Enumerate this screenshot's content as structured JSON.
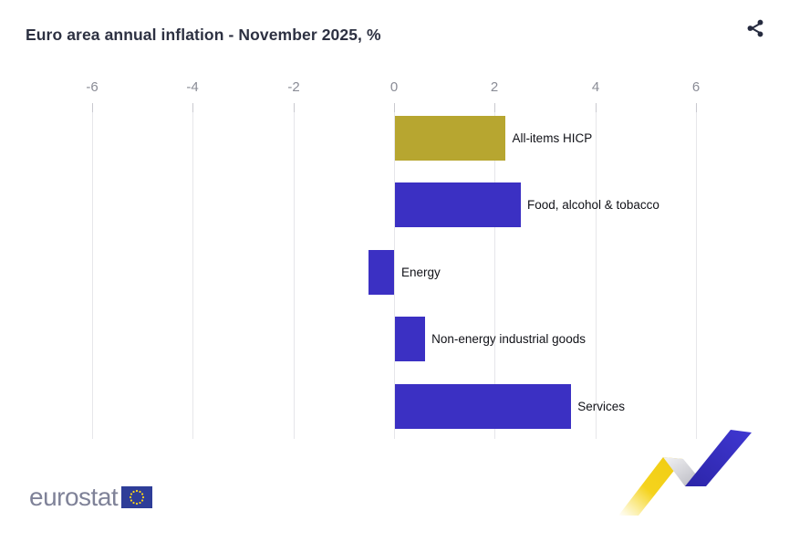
{
  "header": {
    "title": "Euro area annual inflation - November 2025, %"
  },
  "chart_data": {
    "type": "bar",
    "orientation": "horizontal",
    "title": "Euro area annual inflation - November 2025, %",
    "categories": [
      "All-items HICP",
      "Food, alcohol & tobacco",
      "Energy",
      "Non-energy industrial goods",
      "Services"
    ],
    "values": [
      2.2,
      2.5,
      -0.5,
      0.6,
      3.5
    ],
    "unit": "%",
    "bar_colors": [
      "#b7a630",
      "#3b30c3",
      "#3b30c3",
      "#3b30c3",
      "#3b30c3"
    ],
    "x_ticks": [
      -6,
      -4,
      -2,
      0,
      2,
      4,
      6
    ],
    "xlim": [
      -6,
      6
    ],
    "grid": "vertical-gridlines",
    "legend": "none",
    "category_label_position": "end-of-bar"
  },
  "footer": {
    "logo_text": "eurostat"
  },
  "colors": {
    "accent_gold": "#b7a630",
    "accent_blue": "#3b30c3",
    "title_text": "#2d3142",
    "tick_label": "#8a8c96",
    "gridline": "#e6e6ea",
    "logo_gray": "#7f8298",
    "eu_flag_blue": "#2e3d98",
    "eu_star_yellow": "#ffd617",
    "ribbon_yellow": "#f5d31d",
    "ribbon_gray": "#c3c3ca",
    "ribbon_blue": "#362fc0"
  }
}
